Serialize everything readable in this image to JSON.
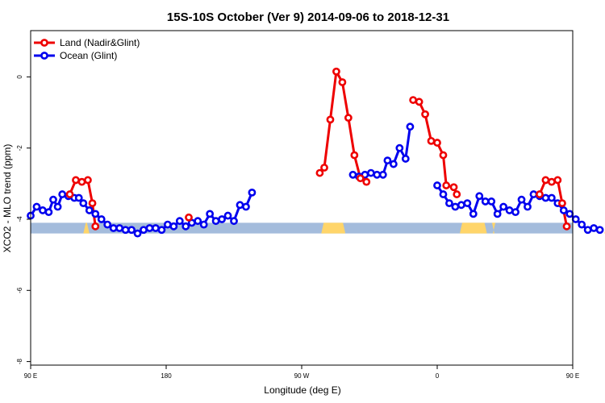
{
  "chart_data": {
    "type": "line",
    "title": "15S-10S October (Ver 9)   2014-09-06 to 2018-12-31",
    "xlabel": "Longitude (deg E)",
    "ylabel": "XCO2 - MLO trend (ppm)",
    "xlim": [
      90,
      450
    ],
    "ylim": [
      -8.1,
      1.3
    ],
    "x_ticks": [
      {
        "value": 90,
        "label": "90 E"
      },
      {
        "value": 180,
        "label": "180"
      },
      {
        "value": 270,
        "label": "90 W"
      },
      {
        "value": 360,
        "label": "0"
      },
      {
        "value": 450,
        "label": "90 E"
      },
      {
        "value": 540,
        "label": "180"
      }
    ],
    "y_ticks": [
      {
        "value": 0,
        "label": "0"
      },
      {
        "value": -2,
        "label": "-2"
      },
      {
        "value": -4,
        "label": "-4"
      },
      {
        "value": -6,
        "label": "-6"
      },
      {
        "value": -8,
        "label": "-8"
      }
    ],
    "grid": false,
    "legend_position": "top-left",
    "land_band": {
      "y": [
        -4.4,
        -4.1
      ],
      "ocean_color": "#a4bcdc",
      "land_color": "#ffd56a",
      "land_segments": [
        [
          125,
          129
        ],
        [
          283,
          299
        ],
        [
          375,
          393
        ],
        [
          397,
          398
        ],
        [
          471,
          475
        ]
      ]
    },
    "series": [
      {
        "name": "Ocean (Glint)",
        "color": "#0000ee",
        "points": [
          [
            90,
            -3.9
          ],
          [
            94,
            -3.65
          ],
          [
            98,
            -3.75
          ],
          [
            102,
            -3.8
          ],
          [
            105,
            -3.45
          ],
          [
            108,
            -3.65
          ],
          [
            111,
            -3.3
          ],
          [
            115,
            -3.35
          ],
          [
            119,
            -3.4
          ],
          [
            122,
            -3.4
          ],
          [
            125,
            -3.55
          ],
          [
            129,
            -3.75
          ],
          [
            133,
            -3.85
          ],
          [
            137,
            -4.0
          ],
          [
            141,
            -4.15
          ],
          [
            145,
            -4.25
          ],
          [
            149,
            -4.25
          ],
          [
            153,
            -4.3
          ],
          [
            157,
            -4.3
          ],
          [
            161,
            -4.4
          ],
          [
            165,
            -4.3
          ],
          [
            169,
            -4.25
          ],
          [
            173,
            -4.25
          ],
          [
            177,
            -4.3
          ],
          [
            181,
            -4.15
          ],
          [
            185,
            -4.2
          ],
          [
            189,
            -4.05
          ],
          [
            193,
            -4.2
          ],
          [
            197,
            -4.1
          ],
          [
            201,
            -4.05
          ],
          [
            205,
            -4.15
          ],
          [
            209,
            -3.85
          ],
          [
            213,
            -4.05
          ],
          [
            217,
            -4.0
          ],
          [
            221,
            -3.9
          ],
          [
            225,
            -4.05
          ],
          [
            229,
            -3.6
          ],
          [
            233,
            -3.65
          ],
          [
            237,
            -3.25
          ]
        ]
      },
      {
        "name": "Ocean (Glint)",
        "color": "#0000ee",
        "points": [
          [
            304,
            -2.75
          ],
          [
            308,
            -2.8
          ],
          [
            312,
            -2.75
          ],
          [
            316,
            -2.7
          ],
          [
            320,
            -2.75
          ],
          [
            324,
            -2.75
          ],
          [
            327,
            -2.35
          ],
          [
            331,
            -2.45
          ],
          [
            335,
            -2.0
          ],
          [
            339,
            -2.3
          ],
          [
            342,
            -1.4
          ]
        ]
      },
      {
        "name": "Ocean (Glint)",
        "color": "#0000ee",
        "points": [
          [
            360,
            -3.05
          ],
          [
            364,
            -3.3
          ],
          [
            368,
            -3.55
          ],
          [
            372,
            -3.65
          ],
          [
            376,
            -3.6
          ],
          [
            380,
            -3.55
          ],
          [
            384,
            -3.85
          ],
          [
            388,
            -3.35
          ],
          [
            392,
            -3.5
          ],
          [
            396,
            -3.5
          ],
          [
            400,
            -3.85
          ],
          [
            404,
            -3.65
          ],
          [
            408,
            -3.75
          ],
          [
            412,
            -3.8
          ],
          [
            416,
            -3.45
          ],
          [
            420,
            -3.65
          ],
          [
            424,
            -3.3
          ],
          [
            428,
            -3.35
          ],
          [
            432,
            -3.4
          ],
          [
            436,
            -3.4
          ],
          [
            440,
            -3.55
          ],
          [
            444,
            -3.75
          ],
          [
            448,
            -3.85
          ],
          [
            452,
            -4.0
          ],
          [
            456,
            -4.15
          ],
          [
            460,
            -4.3
          ],
          [
            464,
            -4.25
          ],
          [
            468,
            -4.3
          ]
        ]
      },
      {
        "name": "Land (Nadir&Glint)",
        "color": "#ee0000",
        "points": [
          [
            116,
            -3.3
          ],
          [
            120,
            -2.9
          ],
          [
            124,
            -2.95
          ],
          [
            128,
            -2.9
          ],
          [
            131,
            -3.55
          ],
          [
            133,
            -4.2
          ]
        ]
      },
      {
        "name": "Land (Nadir&Glint)",
        "color": "#ee0000",
        "points": [
          [
            195,
            -3.95
          ]
        ]
      },
      {
        "name": "Land (Nadir&Glint)",
        "color": "#ee0000",
        "points": [
          [
            282,
            -2.7
          ],
          [
            285,
            -2.55
          ],
          [
            289,
            -1.2
          ],
          [
            293,
            0.15
          ],
          [
            297,
            -0.15
          ],
          [
            301,
            -1.15
          ],
          [
            305,
            -2.2
          ],
          [
            309,
            -2.85
          ],
          [
            313,
            -2.95
          ]
        ]
      },
      {
        "name": "Land (Nadir&Glint)",
        "color": "#ee0000",
        "points": [
          [
            344,
            -0.65
          ],
          [
            348,
            -0.7
          ],
          [
            352,
            -1.05
          ],
          [
            356,
            -1.8
          ],
          [
            360,
            -1.85
          ],
          [
            364,
            -2.2
          ],
          [
            366,
            -3.05
          ],
          [
            371,
            -3.1
          ],
          [
            373,
            -3.3
          ]
        ]
      },
      {
        "name": "Land (Nadir&Glint)",
        "color": "#ee0000",
        "points": [
          [
            428,
            -3.3
          ],
          [
            432,
            -2.9
          ],
          [
            436,
            -2.95
          ],
          [
            440,
            -2.9
          ],
          [
            443,
            -3.55
          ],
          [
            446,
            -4.2
          ]
        ]
      }
    ],
    "legend": [
      {
        "label": "Land (Nadir&Glint)",
        "color": "#ee0000"
      },
      {
        "label": "Ocean (Glint)",
        "color": "#0000ee"
      }
    ]
  }
}
